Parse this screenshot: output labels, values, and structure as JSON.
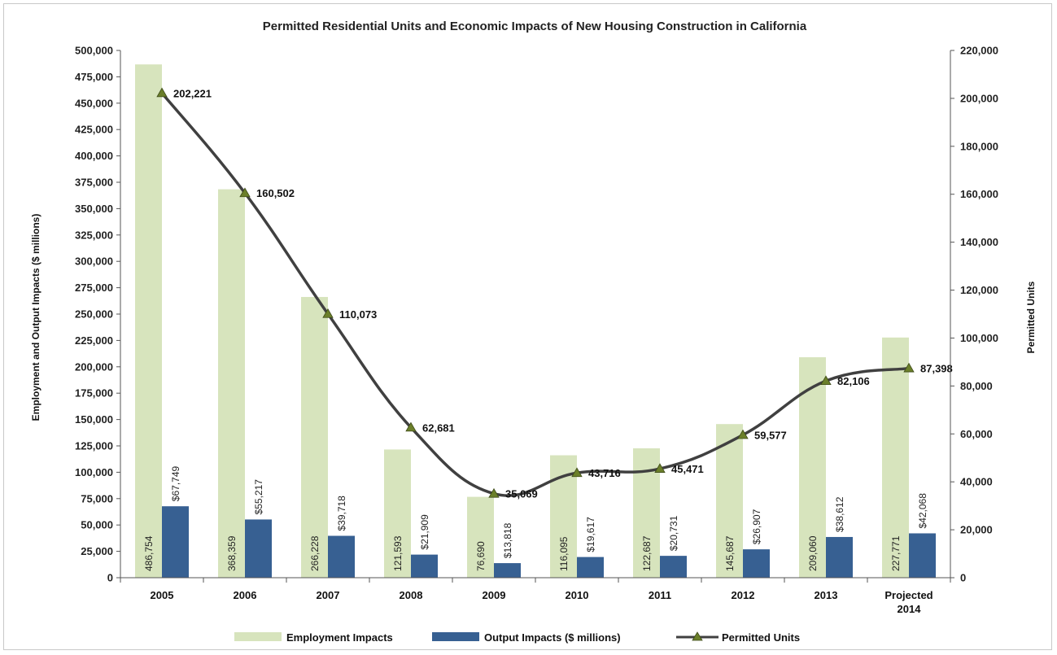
{
  "chart_data": {
    "type": "bar",
    "title": "Permitted Residential Units and Economic Impacts of New Housing Construction in California",
    "ylabel_left": "Employment and Output Impacts ($ millions)",
    "ylabel_right": "Permitted Units",
    "ylim_left": [
      0,
      500000
    ],
    "ylim_right": [
      0,
      220000
    ],
    "categories": [
      "2005",
      "2006",
      "2007",
      "2008",
      "2009",
      "2010",
      "2011",
      "2012",
      "2013",
      [
        "Projected",
        "2014"
      ]
    ],
    "series": [
      {
        "name": "Employment Impacts",
        "type": "bar",
        "axis": "left",
        "color": "#d7e4bd",
        "values": [
          486754,
          368359,
          266228,
          121593,
          76690,
          116095,
          122687,
          145687,
          209060,
          227771
        ],
        "labels": [
          "486,754",
          "368,359",
          "266,228",
          "121,593",
          "76,690",
          "116,095",
          "122,687",
          "145,687",
          "209,060",
          "227,771"
        ]
      },
      {
        "name": "Output Impacts ($ millions)",
        "type": "bar",
        "axis": "left",
        "color": "#376092",
        "values": [
          67749,
          55217,
          39718,
          21909,
          13818,
          19617,
          20731,
          26907,
          38612,
          42068
        ],
        "labels": [
          "$67,749",
          "$55,217",
          "$39,718",
          "$21,909",
          "$13,818",
          "$19,617",
          "$20,731",
          "$26,907",
          "$38,612",
          "$42,068"
        ]
      },
      {
        "name": "Permitted Units",
        "type": "line",
        "axis": "right",
        "color": "#404040",
        "marker_color": "#6b7f2a",
        "values": [
          202221,
          160502,
          110073,
          62681,
          35069,
          43716,
          45471,
          59577,
          82106,
          87398
        ],
        "labels": [
          "202,221",
          "160,502",
          "110,073",
          "62,681",
          "35,069",
          "43,716",
          "45,471",
          "59,577",
          "82,106",
          "87,398"
        ]
      }
    ],
    "left_ticks": [
      "0",
      "25,000",
      "50,000",
      "75,000",
      "100,000",
      "125,000",
      "150,000",
      "175,000",
      "200,000",
      "225,000",
      "250,000",
      "275,000",
      "300,000",
      "325,000",
      "350,000",
      "375,000",
      "400,000",
      "425,000",
      "450,000",
      "475,000",
      "500,000"
    ],
    "right_ticks": [
      "0",
      "20,000",
      "40,000",
      "60,000",
      "80,000",
      "100,000",
      "120,000",
      "140,000",
      "160,000",
      "180,000",
      "200,000",
      "220,000"
    ],
    "legend_position": "bottom",
    "grid": false
  }
}
